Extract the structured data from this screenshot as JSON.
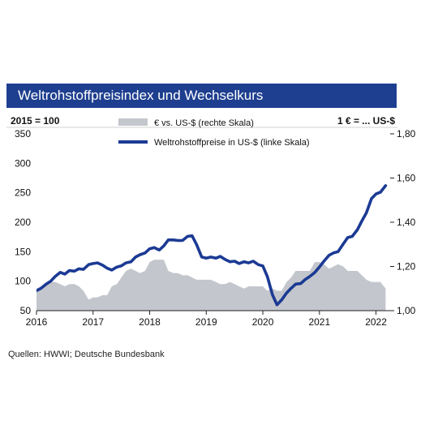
{
  "title": "Weltrohstoffpreisindex und Wechselkurs",
  "source": "Quellen: HWWI; Deutsche Bundesbank",
  "colors": {
    "title_bg": "#1e3f8f",
    "index_line": "#1b3a94",
    "fx_area": "#c3c6cc"
  },
  "chart_data": {
    "type": "line",
    "left_axis_label": "2015 = 100",
    "right_axis_label": "1 € = ... US-$",
    "x_ticks": [
      "2016",
      "2017",
      "2018",
      "2019",
      "2020",
      "2021",
      "2022"
    ],
    "left_ticks": [
      350,
      300,
      250,
      200,
      150,
      100,
      50
    ],
    "right_ticks": [
      "1,80",
      "1,60",
      "1,40",
      "1,20",
      "1,00"
    ],
    "ylim_left": [
      50,
      350
    ],
    "ylim_right": [
      1.0,
      1.8
    ],
    "xlim": [
      2016.0,
      2022.25
    ],
    "grid": false,
    "legend_position": "top",
    "series": [
      {
        "name": "€ vs. US-$ (rechte Skala)",
        "type": "area",
        "axis": "right",
        "x": [
          2016.0,
          2016.08,
          2016.17,
          2016.25,
          2016.33,
          2016.42,
          2016.5,
          2016.58,
          2016.67,
          2016.75,
          2016.83,
          2016.92,
          2017.0,
          2017.08,
          2017.17,
          2017.25,
          2017.33,
          2017.42,
          2017.5,
          2017.58,
          2017.67,
          2017.75,
          2017.83,
          2017.92,
          2018.0,
          2018.08,
          2018.17,
          2018.25,
          2018.33,
          2018.42,
          2018.5,
          2018.58,
          2018.67,
          2018.75,
          2018.83,
          2018.92,
          2019.0,
          2019.08,
          2019.17,
          2019.25,
          2019.33,
          2019.42,
          2019.5,
          2019.58,
          2019.67,
          2019.75,
          2019.83,
          2019.92,
          2020.0,
          2020.08,
          2020.17,
          2020.25,
          2020.33,
          2020.42,
          2020.5,
          2020.58,
          2020.67,
          2020.75,
          2020.83,
          2020.92,
          2021.0,
          2021.08,
          2021.17,
          2021.25,
          2021.33,
          2021.42,
          2021.5,
          2021.58,
          2021.67,
          2021.75,
          2021.83,
          2021.92,
          2022.0,
          2022.08,
          2022.17
        ],
        "values": [
          1.09,
          1.11,
          1.12,
          1.13,
          1.13,
          1.12,
          1.11,
          1.12,
          1.12,
          1.11,
          1.09,
          1.05,
          1.06,
          1.06,
          1.07,
          1.07,
          1.11,
          1.12,
          1.15,
          1.18,
          1.19,
          1.18,
          1.17,
          1.18,
          1.22,
          1.23,
          1.23,
          1.23,
          1.18,
          1.17,
          1.17,
          1.16,
          1.16,
          1.15,
          1.14,
          1.14,
          1.14,
          1.14,
          1.13,
          1.12,
          1.12,
          1.13,
          1.12,
          1.11,
          1.1,
          1.11,
          1.11,
          1.11,
          1.11,
          1.09,
          1.1,
          1.09,
          1.09,
          1.13,
          1.15,
          1.18,
          1.18,
          1.18,
          1.18,
          1.22,
          1.22,
          1.21,
          1.19,
          1.2,
          1.21,
          1.2,
          1.18,
          1.18,
          1.18,
          1.16,
          1.14,
          1.13,
          1.13,
          1.13,
          1.1
        ]
      },
      {
        "name": "Weltrohstoffpreise in US-$ (linke Skala)",
        "type": "line",
        "axis": "left",
        "x": [
          2016.0,
          2016.08,
          2016.17,
          2016.25,
          2016.33,
          2016.42,
          2016.5,
          2016.58,
          2016.67,
          2016.75,
          2016.83,
          2016.92,
          2017.0,
          2017.08,
          2017.17,
          2017.25,
          2017.33,
          2017.42,
          2017.5,
          2017.58,
          2017.67,
          2017.75,
          2017.83,
          2017.92,
          2018.0,
          2018.08,
          2018.17,
          2018.25,
          2018.33,
          2018.42,
          2018.5,
          2018.58,
          2018.67,
          2018.75,
          2018.83,
          2018.92,
          2019.0,
          2019.08,
          2019.17,
          2019.25,
          2019.33,
          2019.42,
          2019.5,
          2019.58,
          2019.67,
          2019.75,
          2019.83,
          2019.92,
          2020.0,
          2020.08,
          2020.17,
          2020.25,
          2020.33,
          2020.42,
          2020.5,
          2020.58,
          2020.67,
          2020.75,
          2020.83,
          2020.92,
          2021.0,
          2021.08,
          2021.17,
          2021.25,
          2021.33,
          2021.42,
          2021.5,
          2021.58,
          2021.67,
          2021.75,
          2021.83,
          2021.92,
          2022.0,
          2022.08,
          2022.17
        ],
        "values": [
          84,
          88,
          95,
          100,
          108,
          115,
          112,
          118,
          117,
          121,
          120,
          128,
          130,
          131,
          127,
          122,
          119,
          124,
          126,
          131,
          133,
          141,
          145,
          148,
          155,
          157,
          153,
          160,
          170,
          170,
          169,
          169,
          176,
          177,
          162,
          141,
          139,
          141,
          139,
          142,
          137,
          133,
          134,
          130,
          133,
          131,
          134,
          128,
          126,
          108,
          77,
          60,
          68,
          80,
          88,
          95,
          96,
          103,
          108,
          115,
          124,
          134,
          144,
          148,
          150,
          163,
          174,
          176,
          187,
          202,
          216,
          240,
          248,
          251,
          262
        ]
      }
    ]
  }
}
